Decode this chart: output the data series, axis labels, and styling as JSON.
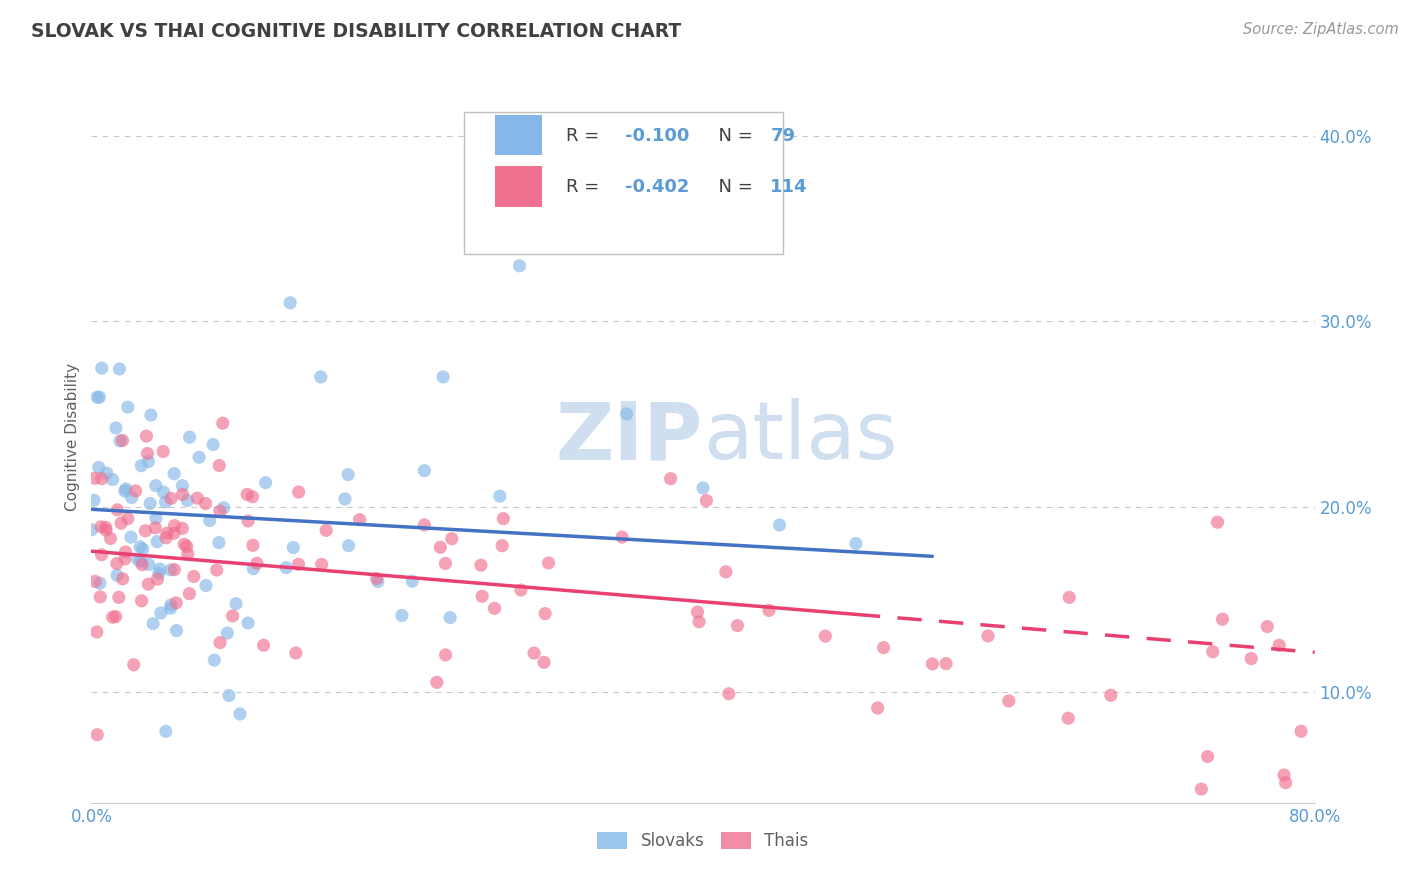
{
  "title": "SLOVAK VS THAI COGNITIVE DISABILITY CORRELATION CHART",
  "source": "Source: ZipAtlas.com",
  "ylabel": "Cognitive Disability",
  "xlim": [
    0.0,
    0.8
  ],
  "ylim": [
    0.04,
    0.435
  ],
  "ytick_positions": [
    0.1,
    0.2,
    0.3,
    0.4
  ],
  "ytick_labels": [
    "10.0%",
    "20.0%",
    "30.0%",
    "40.0%"
  ],
  "grid_color": "#c8c8c8",
  "background_color": "#ffffff",
  "watermark": "ZIPatlas",
  "watermark_color": "#d0dff0",
  "slovak_color": "#85b8e8",
  "thai_color": "#f07090",
  "slovak_label": "Slovaks",
  "thai_label": "Thais",
  "slovak_R": -0.1,
  "slovak_N": 79,
  "thai_R": -0.402,
  "thai_N": 114,
  "title_color": "#404040",
  "axis_label_color": "#606060",
  "tick_label_color": "#5b9bd5",
  "legend_R_color": "#5b9bd5",
  "legend_N_color": "#404040"
}
